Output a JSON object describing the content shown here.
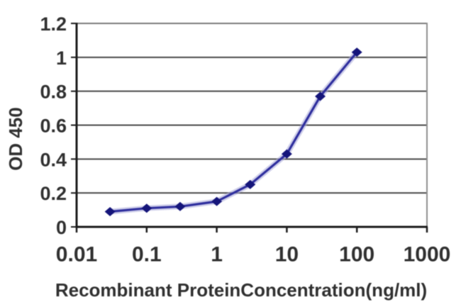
{
  "chart_data": {
    "type": "line",
    "title": "",
    "xlabel": "Recombinant ProteinConcentration(ng/ml)",
    "ylabel": "OD 450",
    "x_scale": "log10",
    "xlim": [
      0.01,
      1000
    ],
    "ylim": [
      0,
      1.2
    ],
    "x_ticks": [
      "0.01",
      "0.1",
      "1",
      "10",
      "100",
      "1000"
    ],
    "y_ticks": [
      "0",
      "0.2",
      "0.4",
      "0.6",
      "0.8",
      "1",
      "1.2"
    ],
    "x": [
      0.03,
      0.1,
      0.3,
      1,
      3,
      10,
      30,
      100
    ],
    "y": [
      0.09,
      0.11,
      0.12,
      0.15,
      0.25,
      0.43,
      0.77,
      1.03
    ],
    "marker": "diamond",
    "grid": "horizontal-major",
    "legend": "none",
    "colors": {
      "line": "#2F2F9E",
      "line_halo": "#A8A8D8",
      "marker": "#15157A",
      "gridline": "#4A4A4A",
      "top_border": "#7A7A7A",
      "right_border": "#8F8F8F",
      "axis_line": "#1C1C1C",
      "tick_label": "#303030",
      "background": "#FFFFFF"
    }
  }
}
